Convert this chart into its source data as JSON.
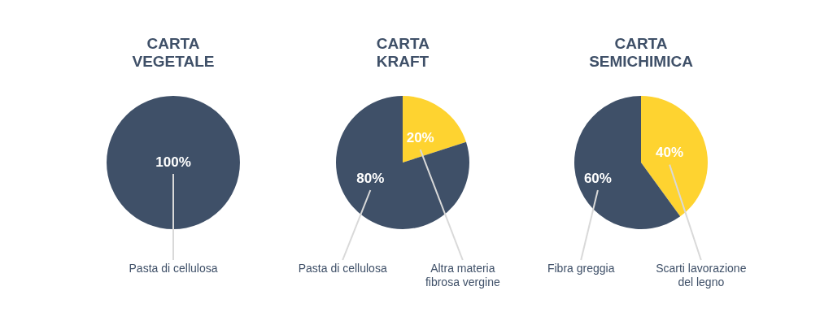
{
  "chart_data": [
    {
      "type": "pie",
      "title": "CARTA VEGETALE",
      "categories": [
        "Pasta di cellulosa"
      ],
      "values": [
        100
      ],
      "colors": [
        "#3f5068"
      ],
      "value_labels": [
        "100%"
      ]
    },
    {
      "type": "pie",
      "title": "CARTA KRAFT",
      "categories": [
        "Altra materia fibrosa vergine",
        "Pasta di cellulosa"
      ],
      "values": [
        20,
        80
      ],
      "colors": [
        "#fed330",
        "#3f5068"
      ],
      "value_labels": [
        "20%",
        "80%"
      ]
    },
    {
      "type": "pie",
      "title": "CARTA SEMICHIMICA",
      "categories": [
        "Scarti lavorazione del legno",
        "Fibra greggia"
      ],
      "values": [
        40,
        60
      ],
      "colors": [
        "#fed330",
        "#3f5068"
      ],
      "value_labels": [
        "40%",
        "60%"
      ]
    }
  ]
}
